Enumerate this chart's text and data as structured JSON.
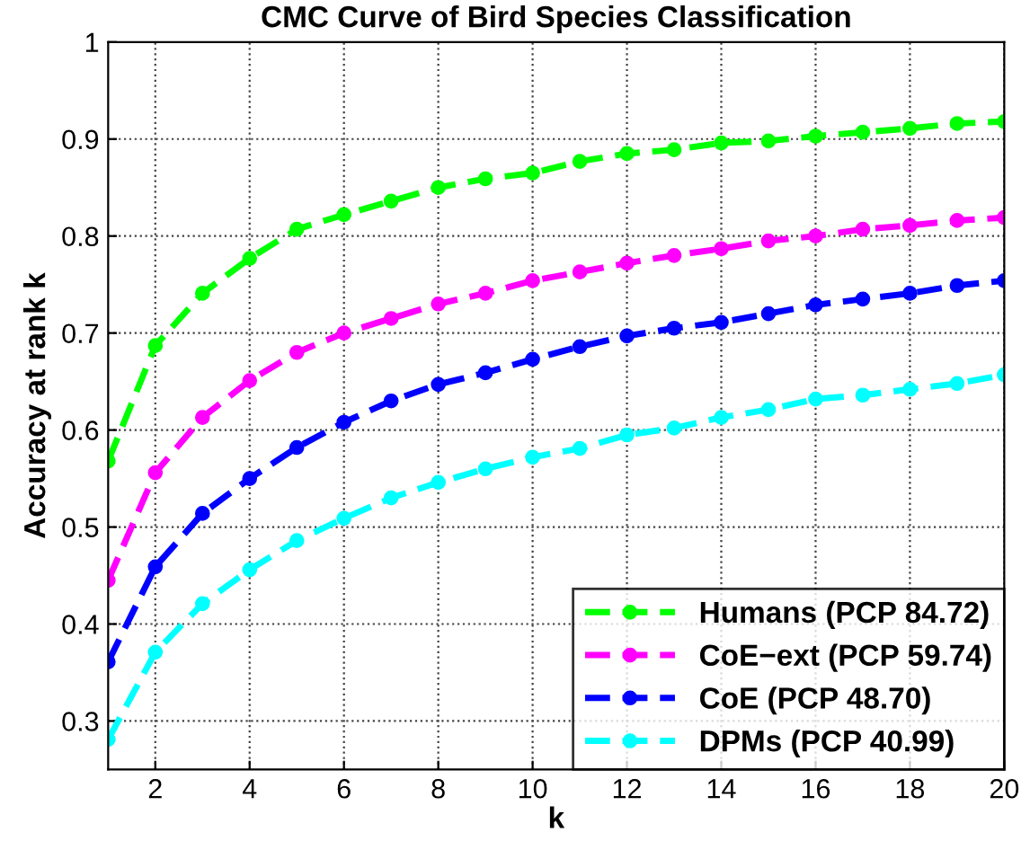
{
  "chart_data": {
    "type": "line",
    "title": "CMC Curve of Bird Species Classification",
    "xlabel": "k",
    "ylabel": "Accuracy at rank k",
    "x": [
      1,
      2,
      3,
      4,
      5,
      6,
      7,
      8,
      9,
      10,
      11,
      12,
      13,
      14,
      15,
      16,
      17,
      18,
      19,
      20
    ],
    "series": [
      {
        "name": "Humans (PCP 84.72)",
        "color": "#00ff00",
        "values": [
          0.568,
          0.687,
          0.741,
          0.777,
          0.807,
          0.822,
          0.836,
          0.85,
          0.859,
          0.865,
          0.877,
          0.885,
          0.889,
          0.896,
          0.898,
          0.903,
          0.907,
          0.911,
          0.916,
          0.918
        ]
      },
      {
        "name": "CoE−ext (PCP 59.74)",
        "color": "#ff00ff",
        "values": [
          0.445,
          0.556,
          0.613,
          0.651,
          0.68,
          0.7,
          0.715,
          0.73,
          0.741,
          0.754,
          0.763,
          0.772,
          0.78,
          0.787,
          0.795,
          0.8,
          0.807,
          0.811,
          0.816,
          0.819
        ]
      },
      {
        "name": "CoE (PCP 48.70)",
        "color": "#0000ff",
        "values": [
          0.361,
          0.459,
          0.514,
          0.55,
          0.582,
          0.608,
          0.63,
          0.647,
          0.659,
          0.673,
          0.686,
          0.697,
          0.705,
          0.711,
          0.72,
          0.729,
          0.735,
          0.741,
          0.749,
          0.754
        ]
      },
      {
        "name": "DPMs (PCP 40.99)",
        "color": "#00ffff",
        "values": [
          0.281,
          0.371,
          0.421,
          0.456,
          0.486,
          0.509,
          0.53,
          0.546,
          0.56,
          0.572,
          0.581,
          0.595,
          0.602,
          0.613,
          0.621,
          0.632,
          0.636,
          0.642,
          0.648,
          0.657
        ]
      }
    ],
    "xlim": [
      1,
      20
    ],
    "xticks": [
      2,
      4,
      6,
      8,
      10,
      12,
      14,
      16,
      18,
      20
    ],
    "ylim": [
      0.25,
      1
    ],
    "yticks": [
      0.3,
      0.4,
      0.5,
      0.6,
      0.7,
      0.8,
      0.9,
      1
    ],
    "grid": true,
    "legend": "bottom right",
    "marker": "circle",
    "line_style": "dashed"
  }
}
